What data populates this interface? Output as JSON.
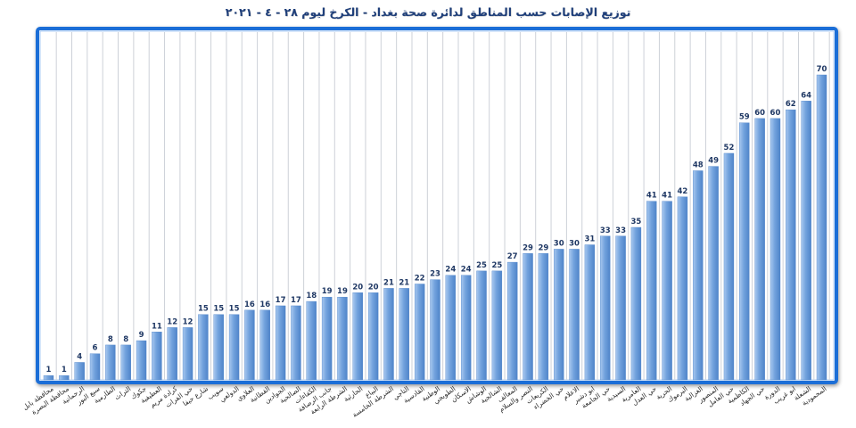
{
  "chart_data": {
    "type": "bar",
    "title": "توزيع الإصابات حسب المناطق لدائرة صحة بغداد - الكرخ ليوم ٢٨ - ٤ - ٢٠٢١",
    "xlabel": "",
    "ylabel": "",
    "ylim": [
      0,
      70
    ],
    "grid": "vertical",
    "legend": "none",
    "data_labels": true,
    "categories": [
      "محافظة بابل",
      "محافظة البصرة",
      "الرحمانية",
      "سبع البور",
      "الطارمية",
      "التراث",
      "جكوك",
      "العطيفية",
      "كرادة مريم",
      "حي الفرات",
      "شارع حيفا",
      "سويب",
      "الدولعي",
      "العلاوي",
      "القطانية",
      "الجوادين",
      "الصالحية",
      "الكفاءات",
      "جانب الرصافة",
      "الشرطة الرابعة",
      "الحارثية",
      "البياع",
      "الشرطة الخامسة",
      "التاجي",
      "القادسية",
      "الوطنية",
      "الطوبجي",
      "الاسكان",
      "الوشاش",
      "الشالجية",
      "المعالف",
      "النصر والسلام",
      "الكريعات",
      "حي الخضراء",
      "الاعلام",
      "ابو دشير",
      "حي الجامعة",
      "السيدية",
      "العامرية",
      "حي العدل",
      "الحرية",
      "اليرموك",
      "الغزالية",
      "المنصور",
      "حي العامل",
      "الكاظمية",
      "حي الجهاد",
      "الدورة",
      "ابو غريب",
      "الشعلة",
      "المحمودية"
    ],
    "values": [
      1,
      1,
      4,
      6,
      8,
      8,
      9,
      11,
      12,
      12,
      15,
      15,
      15,
      16,
      16,
      17,
      17,
      18,
      19,
      19,
      20,
      20,
      21,
      21,
      22,
      23,
      24,
      24,
      25,
      25,
      27,
      29,
      29,
      30,
      30,
      31,
      33,
      33,
      35,
      41,
      41,
      42,
      48,
      49,
      52,
      59,
      60,
      60,
      62,
      64,
      70
    ]
  },
  "colors": {
    "bar_light": "#a8c8ef",
    "bar_mid": "#72a2dd",
    "bar_dark": "#4f84c9",
    "frame": "#1b6ed7",
    "frame_inner": "#6aa4ec",
    "gridline": "#cdd1d8",
    "title": "#1f3f7a",
    "data_label": "#1f3864",
    "tick_label": "#2b2b2b"
  }
}
